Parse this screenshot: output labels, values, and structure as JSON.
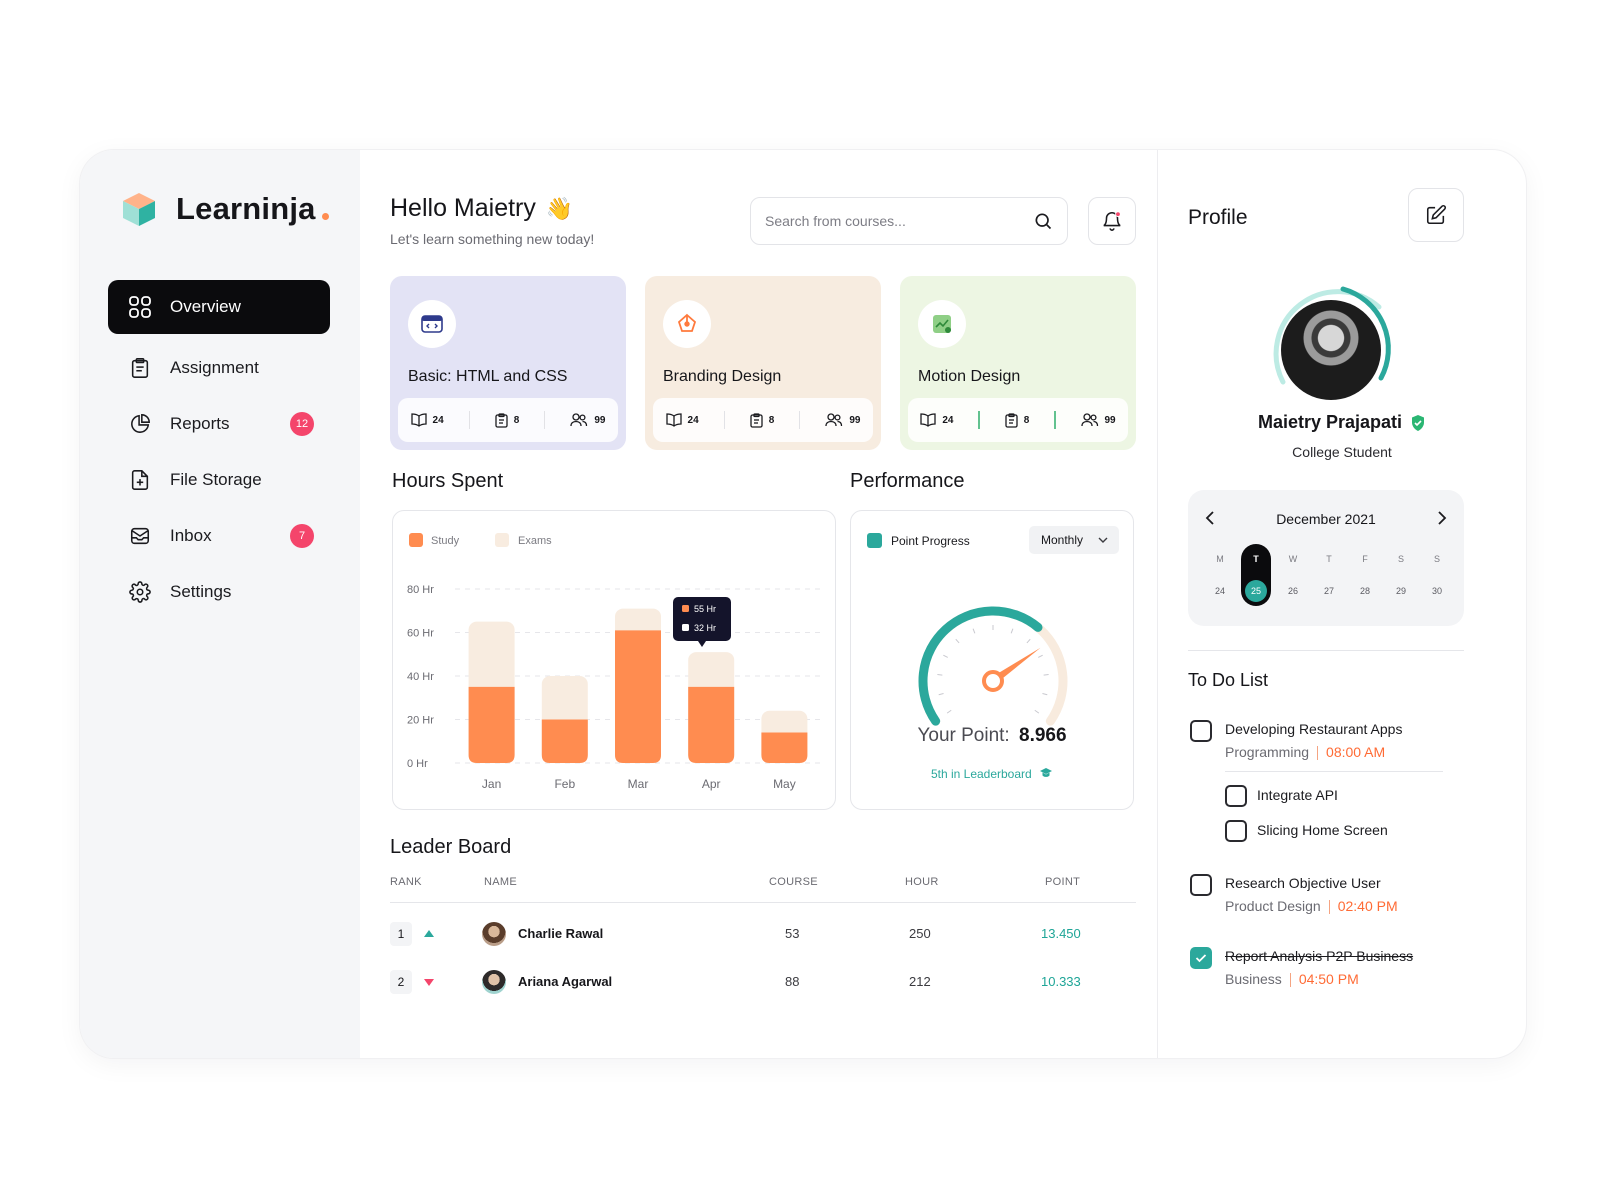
{
  "app": {
    "name": "Learninja"
  },
  "colors": {
    "accent": "#ff8c50",
    "teal": "#2ba89c",
    "dark": "#0b0b0d",
    "badge": "#f4456b"
  },
  "sidebar": {
    "items": [
      {
        "label": "Overview",
        "icon": "grid-icon",
        "active": true
      },
      {
        "label": "Assignment",
        "icon": "clipboard-icon"
      },
      {
        "label": "Reports",
        "icon": "pie-chart-icon",
        "badge": "12"
      },
      {
        "label": "File Storage",
        "icon": "file-plus-icon"
      },
      {
        "label": "Inbox",
        "icon": "inbox-icon",
        "badge": "7"
      },
      {
        "label": "Settings",
        "icon": "gear-icon"
      }
    ]
  },
  "header": {
    "greeting": "Hello Maietry",
    "subtitle": "Let's learn something new today!",
    "search_placeholder": "Search from courses..."
  },
  "courses": [
    {
      "title": "Basic: HTML and CSS",
      "icon": "code-window-icon",
      "bg": "#e3e3f5",
      "lessons": "24",
      "assignments": "8",
      "students": "99"
    },
    {
      "title": "Branding Design",
      "icon": "pen-tool-icon",
      "bg": "#f7ece0",
      "lessons": "24",
      "assignments": "8",
      "students": "99"
    },
    {
      "title": "Motion Design",
      "icon": "chart-image-icon",
      "bg": "#edf6e3",
      "lessons": "24",
      "assignments": "8",
      "students": "99"
    }
  ],
  "hours_spent": {
    "title": "Hours Spent",
    "legend": [
      "Study",
      "Exams"
    ],
    "tooltip": {
      "study": "55 Hr",
      "exams": "32 Hr"
    }
  },
  "chart_data": {
    "type": "bar",
    "stacked": true,
    "categories": [
      "Jan",
      "Feb",
      "Mar",
      "Apr",
      "May"
    ],
    "series": [
      {
        "name": "Study",
        "color": "#ff8c50",
        "values": [
          35,
          20,
          61,
          35,
          14
        ]
      },
      {
        "name": "Exams",
        "color": "#f8ece0",
        "values": [
          30,
          20,
          10,
          16,
          10
        ]
      }
    ],
    "ylim": [
      0,
      80
    ],
    "yticks": [
      "80 Hr",
      "60 Hr",
      "40 Hr",
      "20 Hr",
      "0 Hr"
    ],
    "grid": true,
    "legend": "top-left"
  },
  "performance": {
    "title": "Performance",
    "legend": "Point Progress",
    "period": "Monthly",
    "point_label": "Your Point:",
    "point_value": "8.966",
    "rank_text": "5th in Leaderboard",
    "progress": 0.66
  },
  "leaderboard": {
    "title": "Leader Board",
    "columns": [
      "RANK",
      "NAME",
      "COURSE",
      "HOUR",
      "POINT"
    ],
    "rows": [
      {
        "rank": "1",
        "trend": "up",
        "name": "Charlie Rawal",
        "course": "53",
        "hour": "250",
        "point": "13.450"
      },
      {
        "rank": "2",
        "trend": "down",
        "name": "Ariana Agarwal",
        "course": "88",
        "hour": "212",
        "point": "10.333"
      }
    ]
  },
  "profile": {
    "title": "Profile",
    "name": "Maietry Prajapati",
    "role": "College Student"
  },
  "calendar": {
    "month": "December 2021",
    "days": [
      {
        "name": "M",
        "date": "24"
      },
      {
        "name": "T",
        "date": "25",
        "selected": true
      },
      {
        "name": "W",
        "date": "26"
      },
      {
        "name": "T",
        "date": "27"
      },
      {
        "name": "F",
        "date": "28"
      },
      {
        "name": "S",
        "date": "29"
      },
      {
        "name": "S",
        "date": "30"
      }
    ]
  },
  "todo": {
    "title": "To Do List",
    "items": [
      {
        "title": "Developing Restaurant Apps",
        "category": "Programming",
        "time": "08:00 AM",
        "done": false
      },
      {
        "title": "Integrate API",
        "done": false,
        "sub": true
      },
      {
        "title": "Slicing Home Screen",
        "done": false,
        "sub": true
      },
      {
        "title": "Research Objective User",
        "category": "Product Design",
        "time": "02:40 PM",
        "done": false
      },
      {
        "title": "Report Analysis P2P Business",
        "category": "Business",
        "time": "04:50 PM",
        "done": true
      }
    ]
  }
}
